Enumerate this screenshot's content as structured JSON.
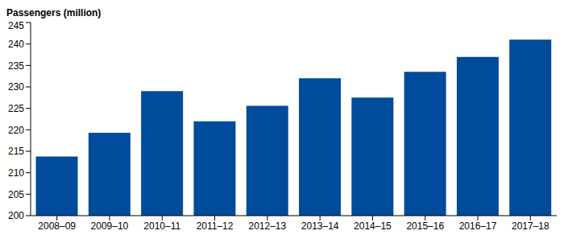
{
  "chart_data": {
    "type": "bar",
    "y_label": "Passengers (million)",
    "categories": [
      "2008–09",
      "2009–10",
      "2010–11",
      "2011–12",
      "2012–13",
      "2013–14",
      "2014–15",
      "2015–16",
      "2016–17",
      "2017–18"
    ],
    "values": [
      213.8,
      219.3,
      229,
      222,
      225.6,
      232,
      227.5,
      233.5,
      237,
      241
    ],
    "color": "#004b9b",
    "ylim": [
      200,
      245
    ],
    "yticks": [
      200,
      205,
      210,
      215,
      220,
      225,
      230,
      235,
      240,
      245
    ],
    "grid": false
  }
}
